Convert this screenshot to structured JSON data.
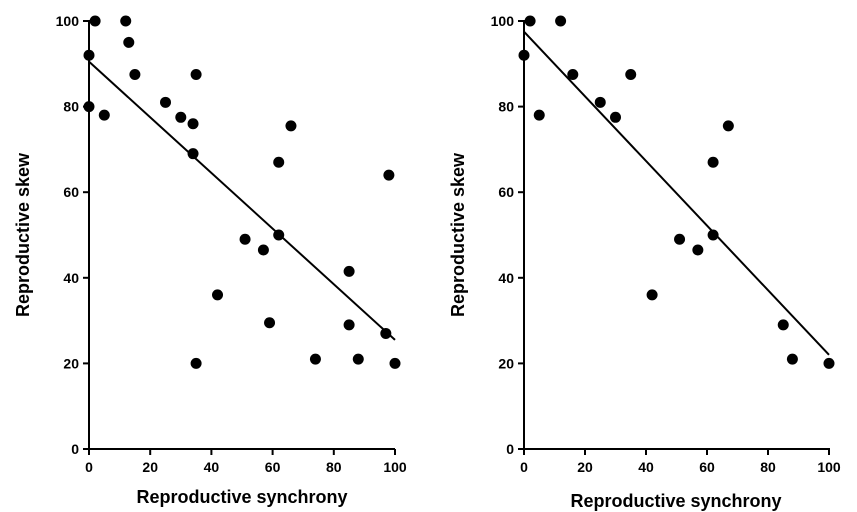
{
  "chart_data": [
    {
      "type": "scatter",
      "xlabel": "Reproductive synchrony",
      "ylabel": "Reproductive skew",
      "xlim": [
        0,
        100
      ],
      "ylim": [
        0,
        100
      ],
      "xticks": [
        "0",
        "20",
        "40",
        "60",
        "80",
        "100"
      ],
      "yticks": [
        "0",
        "20",
        "40",
        "60",
        "80",
        "100"
      ],
      "grid": false,
      "point_color": "#000000",
      "points": [
        {
          "x": 2,
          "y": 100
        },
        {
          "x": 12,
          "y": 100
        },
        {
          "x": 0,
          "y": 92
        },
        {
          "x": 13,
          "y": 95
        },
        {
          "x": 15,
          "y": 87.5
        },
        {
          "x": 35,
          "y": 87.5
        },
        {
          "x": 25,
          "y": 81
        },
        {
          "x": 0,
          "y": 80
        },
        {
          "x": 5,
          "y": 78
        },
        {
          "x": 30,
          "y": 77.5
        },
        {
          "x": 34,
          "y": 76
        },
        {
          "x": 66,
          "y": 75.5
        },
        {
          "x": 34,
          "y": 69
        },
        {
          "x": 62,
          "y": 67
        },
        {
          "x": 98,
          "y": 64
        },
        {
          "x": 62,
          "y": 50
        },
        {
          "x": 51,
          "y": 49
        },
        {
          "x": 57,
          "y": 46.5
        },
        {
          "x": 85,
          "y": 41.5
        },
        {
          "x": 42,
          "y": 36
        },
        {
          "x": 59,
          "y": 29.5
        },
        {
          "x": 85,
          "y": 29
        },
        {
          "x": 97,
          "y": 27
        },
        {
          "x": 74,
          "y": 21
        },
        {
          "x": 88,
          "y": 21
        },
        {
          "x": 35,
          "y": 20
        },
        {
          "x": 100,
          "y": 20
        }
      ],
      "trendline": {
        "x": [
          0,
          100
        ],
        "y": [
          90.5,
          25.5
        ]
      }
    },
    {
      "type": "scatter",
      "xlabel": "Reproductive synchrony",
      "ylabel": "Reproductive skew",
      "xlim": [
        0,
        100
      ],
      "ylim": [
        0,
        100
      ],
      "xticks": [
        "0",
        "20",
        "40",
        "60",
        "80",
        "100"
      ],
      "yticks": [
        "0",
        "20",
        "40",
        "60",
        "80",
        "100"
      ],
      "grid": false,
      "point_color": "#000000",
      "points": [
        {
          "x": 2,
          "y": 100
        },
        {
          "x": 12,
          "y": 100
        },
        {
          "x": 0,
          "y": 92
        },
        {
          "x": 16,
          "y": 87.5
        },
        {
          "x": 35,
          "y": 87.5
        },
        {
          "x": 25,
          "y": 81
        },
        {
          "x": 5,
          "y": 78
        },
        {
          "x": 30,
          "y": 77.5
        },
        {
          "x": 67,
          "y": 75.5
        },
        {
          "x": 62,
          "y": 67
        },
        {
          "x": 62,
          "y": 50
        },
        {
          "x": 51,
          "y": 49
        },
        {
          "x": 57,
          "y": 46.5
        },
        {
          "x": 42,
          "y": 36
        },
        {
          "x": 85,
          "y": 29
        },
        {
          "x": 88,
          "y": 21
        },
        {
          "x": 100,
          "y": 20
        }
      ],
      "trendline": {
        "x": [
          0,
          100
        ],
        "y": [
          97.5,
          22
        ]
      }
    }
  ]
}
